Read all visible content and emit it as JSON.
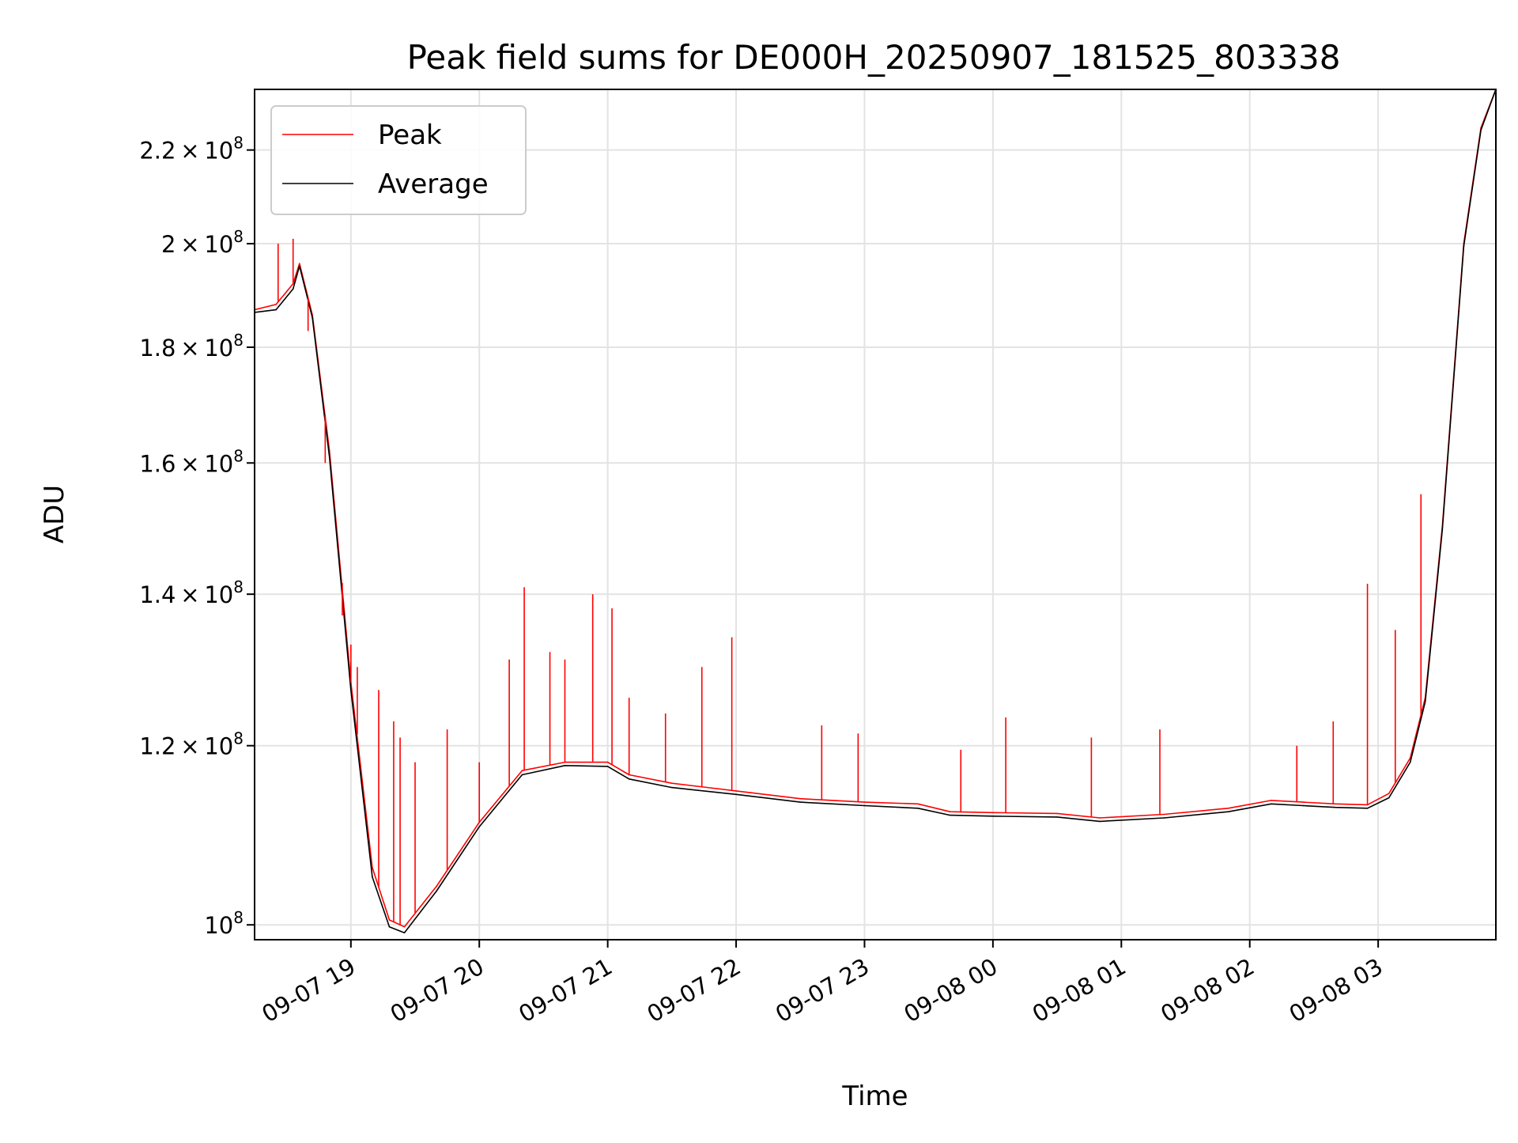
{
  "chart_data": {
    "type": "line",
    "title": "Peak field sums for DE000H_20250907_181525_803338",
    "xlabel": "Time",
    "ylabel": "ADU",
    "y_scale": "log",
    "ylim": [
      98500000,
      234000000
    ],
    "xlim": [
      "2025-09-07 18:15",
      "2025-09-08 03:55"
    ],
    "grid": true,
    "legend_position": "top-left",
    "x_ticks": [
      "09-07 19",
      "09-07 20",
      "09-07 21",
      "09-07 22",
      "09-07 23",
      "09-08 00",
      "09-08 01",
      "09-08 02",
      "09-08 03"
    ],
    "x_tick_times": [
      "2025-09-07 19:00",
      "2025-09-07 20:00",
      "2025-09-07 21:00",
      "2025-09-07 22:00",
      "2025-09-07 23:00",
      "2025-09-08 00:00",
      "2025-09-08 01:00",
      "2025-09-08 02:00",
      "2025-09-08 03:00"
    ],
    "y_ticks": [
      {
        "value": 100000000,
        "mantissa": "",
        "exp": "8"
      },
      {
        "value": 120000000,
        "mantissa": "1.2",
        "exp": "8"
      },
      {
        "value": 140000000,
        "mantissa": "1.4",
        "exp": "8"
      },
      {
        "value": 160000000,
        "mantissa": "1.6",
        "exp": "8"
      },
      {
        "value": 180000000,
        "mantissa": "1.8",
        "exp": "8"
      },
      {
        "value": 200000000,
        "mantissa": "2",
        "exp": "8"
      },
      {
        "value": 220000000,
        "mantissa": "2.2",
        "exp": "8"
      }
    ],
    "series": [
      {
        "name": "Peak",
        "color": "#ff0000",
        "x": [
          "2025-09-07 18:15",
          "2025-09-07 18:25",
          "2025-09-07 18:33",
          "2025-09-07 18:36",
          "2025-09-07 18:42",
          "2025-09-07 18:50",
          "2025-09-07 19:00",
          "2025-09-07 19:10",
          "2025-09-07 19:18",
          "2025-09-07 19:25",
          "2025-09-07 19:40",
          "2025-09-07 20:00",
          "2025-09-07 20:20",
          "2025-09-07 20:40",
          "2025-09-07 21:00",
          "2025-09-07 21:10",
          "2025-09-07 21:30",
          "2025-09-07 22:00",
          "2025-09-07 22:30",
          "2025-09-07 23:00",
          "2025-09-07 23:25",
          "2025-09-07 23:40",
          "2025-09-08 00:00",
          "2025-09-08 00:30",
          "2025-09-08 00:50",
          "2025-09-08 01:20",
          "2025-09-08 01:50",
          "2025-09-08 02:10",
          "2025-09-08 02:25",
          "2025-09-08 02:40",
          "2025-09-08 02:55",
          "2025-09-08 03:05",
          "2025-09-08 03:15",
          "2025-09-08 03:22",
          "2025-09-08 03:30",
          "2025-09-08 03:40",
          "2025-09-08 03:48",
          "2025-09-08 03:55"
        ],
        "y": [
          187000000,
          188000000,
          192000000,
          196000000,
          186000000,
          162000000,
          128000000,
          106000000,
          100500000,
          99800000,
          104000000,
          111000000,
          117000000,
          118000000,
          118000000,
          116500000,
          115500000,
          114600000,
          113700000,
          113300000,
          113100000,
          112200000,
          112100000,
          112000000,
          111500000,
          111900000,
          112600000,
          113500000,
          113300000,
          113100000,
          113000000,
          114300000,
          118500000,
          126000000,
          150000000,
          200000000,
          225000000,
          234000000
        ]
      },
      {
        "name": "Average",
        "color": "#000000",
        "x": [
          "2025-09-07 18:15",
          "2025-09-07 18:25",
          "2025-09-07 18:33",
          "2025-09-07 18:36",
          "2025-09-07 18:42",
          "2025-09-07 18:50",
          "2025-09-07 19:00",
          "2025-09-07 19:10",
          "2025-09-07 19:18",
          "2025-09-07 19:25",
          "2025-09-07 19:40",
          "2025-09-07 20:00",
          "2025-09-07 20:20",
          "2025-09-07 20:40",
          "2025-09-07 21:00",
          "2025-09-07 21:10",
          "2025-09-07 21:30",
          "2025-09-07 22:00",
          "2025-09-07 22:30",
          "2025-09-07 23:00",
          "2025-09-07 23:25",
          "2025-09-07 23:40",
          "2025-09-08 00:00",
          "2025-09-08 00:30",
          "2025-09-08 00:50",
          "2025-09-08 01:20",
          "2025-09-08 01:50",
          "2025-09-08 02:10",
          "2025-09-08 02:25",
          "2025-09-08 02:40",
          "2025-09-08 02:55",
          "2025-09-08 03:05",
          "2025-09-08 03:15",
          "2025-09-08 03:22",
          "2025-09-08 03:30",
          "2025-09-08 03:40",
          "2025-09-08 03:48",
          "2025-09-08 03:55"
        ],
        "y": [
          186500000,
          187000000,
          191000000,
          195500000,
          185500000,
          161000000,
          127000000,
          105000000,
          99800000,
          99200000,
          103500000,
          110500000,
          116500000,
          117600000,
          117500000,
          116000000,
          115000000,
          114200000,
          113300000,
          112900000,
          112600000,
          111800000,
          111700000,
          111600000,
          111100000,
          111500000,
          112200000,
          113100000,
          112900000,
          112700000,
          112600000,
          113800000,
          118000000,
          125500000,
          149500000,
          199500000,
          224500000,
          234000000
        ]
      }
    ],
    "spikes": [
      {
        "x": "2025-09-07 18:26",
        "y": 200000000
      },
      {
        "x": "2025-09-07 18:33",
        "y": 201000000
      },
      {
        "x": "2025-09-07 18:40",
        "y": 183000000
      },
      {
        "x": "2025-09-07 18:48",
        "y": 160000000
      },
      {
        "x": "2025-09-07 18:56",
        "y": 137000000
      },
      {
        "x": "2025-09-07 19:00",
        "y": 133000000
      },
      {
        "x": "2025-09-07 19:03",
        "y": 130000000
      },
      {
        "x": "2025-09-07 19:13",
        "y": 127000000
      },
      {
        "x": "2025-09-07 19:20",
        "y": 123000000
      },
      {
        "x": "2025-09-07 19:23",
        "y": 121000000
      },
      {
        "x": "2025-09-07 19:30",
        "y": 118000000
      },
      {
        "x": "2025-09-07 19:45",
        "y": 122000000
      },
      {
        "x": "2025-09-07 20:00",
        "y": 118000000
      },
      {
        "x": "2025-09-07 20:14",
        "y": 131000000
      },
      {
        "x": "2025-09-07 20:21",
        "y": 141000000
      },
      {
        "x": "2025-09-07 20:33",
        "y": 132000000
      },
      {
        "x": "2025-09-07 20:40",
        "y": 131000000
      },
      {
        "x": "2025-09-07 20:53",
        "y": 140000000
      },
      {
        "x": "2025-09-07 21:02",
        "y": 138000000
      },
      {
        "x": "2025-09-07 21:10",
        "y": 126000000
      },
      {
        "x": "2025-09-07 21:27",
        "y": 124000000
      },
      {
        "x": "2025-09-07 21:44",
        "y": 130000000
      },
      {
        "x": "2025-09-07 21:58",
        "y": 134000000
      },
      {
        "x": "2025-09-07 22:40",
        "y": 122500000
      },
      {
        "x": "2025-09-07 22:57",
        "y": 121500000
      },
      {
        "x": "2025-09-07 23:45",
        "y": 119500000
      },
      {
        "x": "2025-09-08 00:06",
        "y": 123500000
      },
      {
        "x": "2025-09-08 00:46",
        "y": 121000000
      },
      {
        "x": "2025-09-08 01:18",
        "y": 122000000
      },
      {
        "x": "2025-09-08 02:22",
        "y": 120000000
      },
      {
        "x": "2025-09-08 02:39",
        "y": 123000000
      },
      {
        "x": "2025-09-08 02:55",
        "y": 141500000
      },
      {
        "x": "2025-09-08 03:08",
        "y": 135000000
      },
      {
        "x": "2025-09-08 03:20",
        "y": 155000000
      }
    ]
  }
}
